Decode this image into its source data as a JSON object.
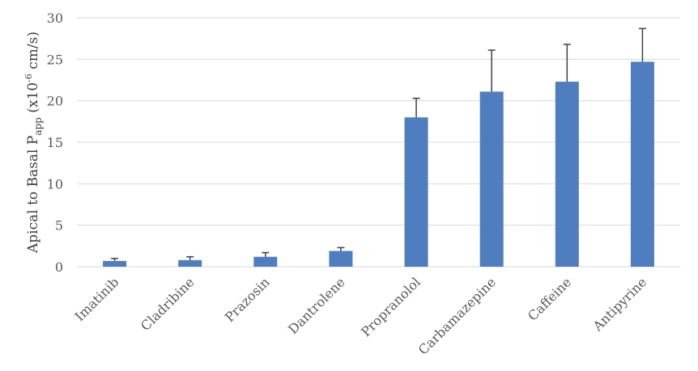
{
  "chart_data": {
    "type": "bar",
    "title": "",
    "xlabel": "",
    "ylabel": {
      "prefix": "Apical to Basal P",
      "subscript": "app",
      "units_prefix": " (x10",
      "superscript": "-6",
      "units_suffix": " cm/s)"
    },
    "ylim": [
      0,
      30
    ],
    "yticks": [
      0,
      5,
      10,
      15,
      20,
      25,
      30
    ],
    "grid": true,
    "legend": "none",
    "categories": [
      "Imatinib",
      "Cladribine",
      "Prazosin",
      "Dantrolene",
      "Propranolol",
      "Carbamazepine",
      "Caffeine",
      "Antipyrine"
    ],
    "series": [
      {
        "values": [
          0.7,
          0.8,
          1.2,
          1.9,
          18.0,
          21.1,
          22.3,
          24.7
        ],
        "error_plus": [
          0.3,
          0.4,
          0.5,
          0.4,
          2.3,
          5.0,
          4.5,
          4.0
        ],
        "color": "#4F7EC0"
      }
    ],
    "colors": {
      "bar": "#4F7EC0",
      "grid": "#D9D9D9",
      "error_bar": "#404040",
      "tick_text": "#595959"
    }
  }
}
